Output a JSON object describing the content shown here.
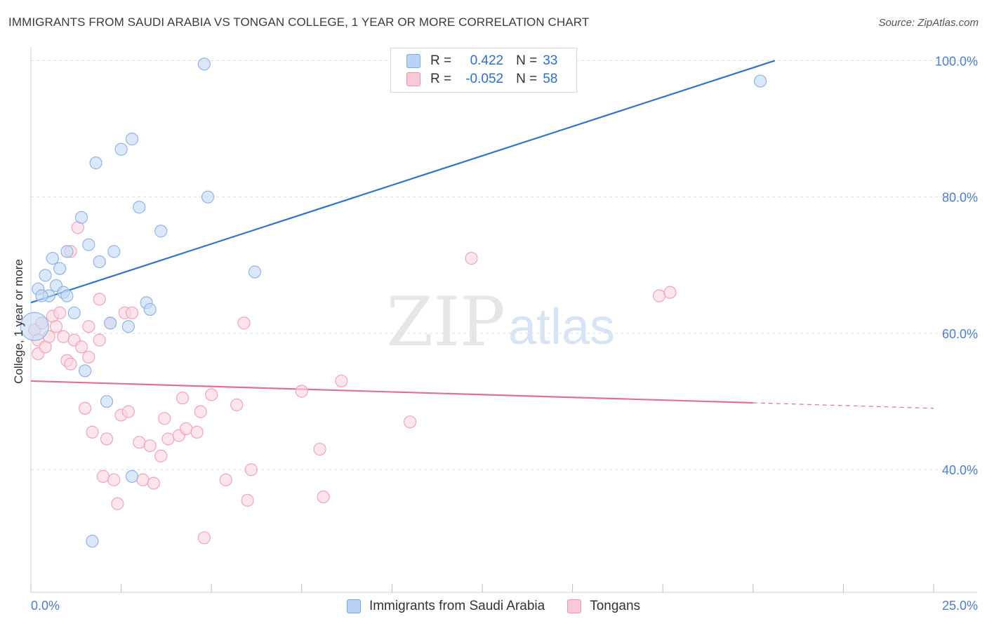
{
  "header": {
    "title": "IMMIGRANTS FROM SAUDI ARABIA VS TONGAN COLLEGE, 1 YEAR OR MORE CORRELATION CHART",
    "source": "Source: ZipAtlas.com"
  },
  "watermark": {
    "zip": "ZIP",
    "atlas": "atlas"
  },
  "legend": {
    "series": [
      {
        "name": "Immigrants from Saudi Arabia",
        "r_label": "R =",
        "r_value": "0.422",
        "n_label": "N =",
        "n_value": "33"
      },
      {
        "name": "Tongans",
        "r_label": "R =",
        "r_value": "-0.052",
        "n_label": "N =",
        "n_value": "58"
      }
    ]
  },
  "colors": {
    "blue_point": "#8fb5ea",
    "blue_line": "#2e74d0",
    "pink_point": "#f2a3bc",
    "pink_line": "#e0709a",
    "axis_text": "#4a7fd0",
    "grid": "#dddddd"
  },
  "chart_data": {
    "type": "scatter",
    "title": "IMMIGRANTS FROM SAUDI ARABIA VS TONGAN COLLEGE, 1 YEAR OR MORE CORRELATION CHART",
    "xlabel": "",
    "ylabel": "College, 1 year or more",
    "xlim": [
      0,
      25
    ],
    "ylim": [
      22,
      102
    ],
    "x_tick_labels": [
      "0.0%",
      "25.0%"
    ],
    "y_ticks": [
      40,
      60,
      80,
      100
    ],
    "y_tick_labels": [
      "40.0%",
      "60.0%",
      "80.0%",
      "100.0%"
    ],
    "series": [
      {
        "name": "Immigrants from Saudi Arabia",
        "color": "#8fb5ea",
        "points": [
          [
            0.1,
            61.0
          ],
          [
            0.2,
            66.5
          ],
          [
            0.5,
            65.5
          ],
          [
            0.4,
            68.5
          ],
          [
            0.6,
            71.0
          ],
          [
            0.7,
            67.0
          ],
          [
            0.8,
            69.5
          ],
          [
            0.9,
            66.0
          ],
          [
            1.0,
            65.5
          ],
          [
            1.0,
            72.0
          ],
          [
            1.2,
            63.0
          ],
          [
            1.4,
            77.0
          ],
          [
            1.5,
            54.5
          ],
          [
            1.6,
            73.0
          ],
          [
            1.8,
            85.0
          ],
          [
            1.9,
            70.5
          ],
          [
            2.1,
            50.0
          ],
          [
            2.2,
            61.5
          ],
          [
            2.3,
            72.0
          ],
          [
            2.5,
            87.0
          ],
          [
            2.7,
            61.0
          ],
          [
            2.8,
            88.5
          ],
          [
            3.0,
            78.5
          ],
          [
            3.2,
            64.5
          ],
          [
            3.3,
            63.5
          ],
          [
            3.6,
            75.0
          ],
          [
            4.8,
            99.5
          ],
          [
            4.9,
            80.0
          ],
          [
            6.2,
            69.0
          ],
          [
            1.7,
            29.5
          ],
          [
            2.8,
            39.0
          ],
          [
            20.2,
            97.0
          ],
          [
            0.3,
            65.5
          ]
        ],
        "trend": {
          "x": [
            0.0,
            20.6
          ],
          "y": [
            64.5,
            100.0
          ]
        }
      },
      {
        "name": "Tongans",
        "color": "#f2a3bc",
        "points": [
          [
            0.1,
            60.5
          ],
          [
            0.2,
            59.0
          ],
          [
            0.2,
            57.0
          ],
          [
            0.3,
            61.5
          ],
          [
            0.4,
            58.0
          ],
          [
            0.5,
            59.5
          ],
          [
            0.6,
            62.5
          ],
          [
            0.7,
            61.0
          ],
          [
            0.8,
            63.0
          ],
          [
            0.9,
            59.5
          ],
          [
            1.0,
            56.0
          ],
          [
            1.1,
            55.5
          ],
          [
            1.1,
            72.0
          ],
          [
            1.2,
            59.0
          ],
          [
            1.3,
            75.5
          ],
          [
            1.4,
            58.0
          ],
          [
            1.5,
            49.0
          ],
          [
            1.6,
            56.5
          ],
          [
            1.6,
            61.0
          ],
          [
            1.7,
            45.5
          ],
          [
            1.9,
            65.0
          ],
          [
            1.9,
            59.0
          ],
          [
            2.0,
            39.0
          ],
          [
            2.1,
            44.5
          ],
          [
            2.2,
            61.5
          ],
          [
            2.3,
            38.5
          ],
          [
            2.4,
            35.0
          ],
          [
            2.5,
            48.0
          ],
          [
            2.6,
            63.0
          ],
          [
            2.7,
            48.5
          ],
          [
            2.8,
            63.0
          ],
          [
            3.0,
            44.0
          ],
          [
            3.1,
            38.5
          ],
          [
            3.3,
            43.5
          ],
          [
            3.4,
            38.0
          ],
          [
            3.6,
            42.0
          ],
          [
            3.7,
            47.5
          ],
          [
            3.8,
            44.5
          ],
          [
            4.1,
            45.0
          ],
          [
            4.2,
            50.5
          ],
          [
            4.3,
            46.0
          ],
          [
            4.6,
            45.5
          ],
          [
            4.7,
            48.5
          ],
          [
            4.8,
            30.0
          ],
          [
            5.0,
            51.0
          ],
          [
            5.4,
            38.5
          ],
          [
            5.7,
            49.5
          ],
          [
            6.0,
            35.5
          ],
          [
            5.9,
            61.5
          ],
          [
            6.1,
            40.0
          ],
          [
            7.5,
            51.5
          ],
          [
            8.0,
            43.0
          ],
          [
            8.1,
            36.0
          ],
          [
            8.6,
            53.0
          ],
          [
            10.5,
            47.0
          ],
          [
            12.2,
            71.0
          ],
          [
            17.4,
            65.5
          ],
          [
            17.7,
            66.0
          ]
        ],
        "trend": {
          "x": [
            0.0,
            20.0
          ],
          "y": [
            53.0,
            49.8
          ]
        },
        "trend_extension": {
          "x": [
            20.0,
            25.0
          ],
          "y": [
            49.8,
            49.0
          ]
        }
      }
    ]
  }
}
